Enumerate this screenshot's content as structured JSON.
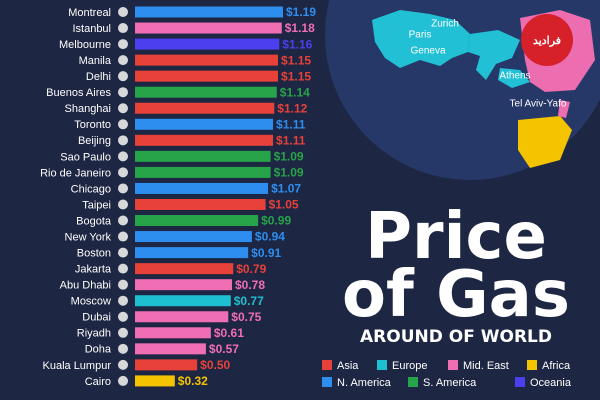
{
  "chart_data": {
    "type": "bar",
    "orientation": "horizontal",
    "title": "Price of Gas",
    "subtitle": "AROUND OF WORLD",
    "categories": [
      "Montreal",
      "Istanbul",
      "Melbourne",
      "Manila",
      "Delhi",
      "Buenos Aires",
      "Shanghai",
      "Toronto",
      "Beijing",
      "Sao Paulo",
      "Rio de Janeiro",
      "Chicago",
      "Taipei",
      "Bogota",
      "New York",
      "Boston",
      "Jakarta",
      "Abu Dhabi",
      "Moscow",
      "Dubai",
      "Riyadh",
      "Doha",
      "Kuala Lumpur",
      "Cairo"
    ],
    "values": [
      1.19,
      1.18,
      1.16,
      1.15,
      1.15,
      1.14,
      1.12,
      1.11,
      1.11,
      1.09,
      1.09,
      1.07,
      1.05,
      0.99,
      0.94,
      0.91,
      0.79,
      0.78,
      0.77,
      0.75,
      0.61,
      0.57,
      0.5,
      0.32
    ],
    "value_labels": [
      "$1.19",
      "$1.18",
      "$1.16",
      "$1.15",
      "$1.15",
      "$1.14",
      "$1.12",
      "$1.11",
      "$1.11",
      "$1.09",
      "$1.09",
      "$1.07",
      "$1.05",
      "$0.99",
      "$0.94",
      "$0.91",
      "$0.79",
      "$0.78",
      "$0.77",
      "$0.75",
      "$0.61",
      "$0.57",
      "$0.50",
      "$0.32"
    ],
    "colors": [
      "#2e8ef0",
      "#f06eb4",
      "#4b3ff0",
      "#e8413a",
      "#e8413a",
      "#27a34a",
      "#e8413a",
      "#2e8ef0",
      "#e8413a",
      "#27a34a",
      "#27a34a",
      "#2e8ef0",
      "#e8413a",
      "#27a34a",
      "#2e8ef0",
      "#2e8ef0",
      "#e8413a",
      "#f06eb4",
      "#1cc0d0",
      "#f06eb4",
      "#f06eb4",
      "#f06eb4",
      "#e8413a",
      "#f5c400"
    ],
    "legend": [
      {
        "name": "Asia",
        "color": "#e8413a"
      },
      {
        "name": "Europe",
        "color": "#1cc0d0"
      },
      {
        "name": "Mid. East",
        "color": "#f06eb4"
      },
      {
        "name": "Africa",
        "color": "#f5c400"
      },
      {
        "name": "N. America",
        "color": "#2e8ef0"
      },
      {
        "name": "S. America",
        "color": "#27a34a"
      },
      {
        "name": "Oceania",
        "color": "#4b3ff0"
      }
    ],
    "map_labels": [
      "Zurich",
      "Paris",
      "Geneva",
      "Athens",
      "Tel Aviv-Yafo"
    ],
    "watermark": "فرادید"
  }
}
